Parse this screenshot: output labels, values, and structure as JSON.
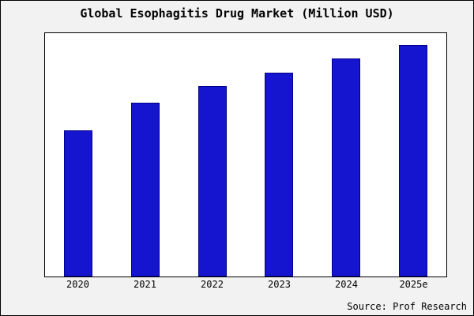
{
  "title": "Global Esophagitis Drug Market (Million USD)",
  "source": "Source: Prof Research",
  "colors": {
    "bar_fill": "#1515cf",
    "bar_border": "#00008b",
    "figure_background": "#f2f2f2",
    "plot_background": "#ffffff"
  },
  "chart_data": {
    "type": "bar",
    "categories": [
      "2020",
      "2021",
      "2022",
      "2023",
      "2024",
      "2025e"
    ],
    "values": [
      63,
      75,
      82,
      88,
      94,
      100
    ],
    "title": "Global Esophagitis Drug Market (Million USD)",
    "xlabel": "",
    "ylabel": "",
    "ylim": [
      0,
      105
    ],
    "grid": false,
    "legend": false,
    "annotation": "Source: Prof Research",
    "note": "No y-axis tick labels shown; values are relative estimates with 2025e = 100"
  }
}
